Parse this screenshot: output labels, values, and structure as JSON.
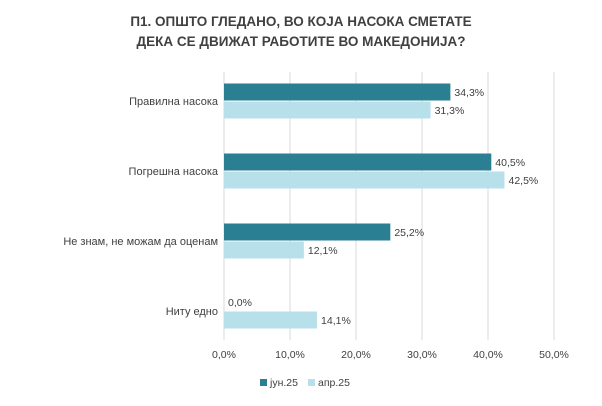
{
  "chart_data": {
    "type": "bar",
    "orientation": "horizontal",
    "title_lines": [
      "П1. ОПШТО ГЛЕДАНО, ВО КОЈА НАСОКА СМЕТАТЕ",
      "ДЕКА СЕ ДВИЖАТ  РАБОТИТЕ ВО МАКЕДОНИЈА?"
    ],
    "categories": [
      "Правилна насока",
      "Погрешна насока",
      "Не знам, не можам да оценам",
      "Ниту едно"
    ],
    "series": [
      {
        "name": "јун.25",
        "color": "#2a7f92",
        "values": [
          34.3,
          40.5,
          25.2,
          0.0
        ],
        "labels": [
          "34,3%",
          "40,5%",
          "25,2%",
          "0,0%"
        ]
      },
      {
        "name": "апр.25",
        "color": "#b8e0ea",
        "values": [
          31.3,
          42.5,
          12.1,
          14.1
        ],
        "labels": [
          "31,3%",
          "42,5%",
          "12,1%",
          "14,1%"
        ]
      }
    ],
    "xlim": [
      0,
      50
    ],
    "xticks": [
      0,
      10,
      20,
      30,
      40,
      50
    ],
    "xtick_labels": [
      "0,0%",
      "10,0%",
      "20,0%",
      "30,0%",
      "40,0%",
      "50,0%"
    ],
    "grid": true,
    "legend_position": "bottom"
  }
}
